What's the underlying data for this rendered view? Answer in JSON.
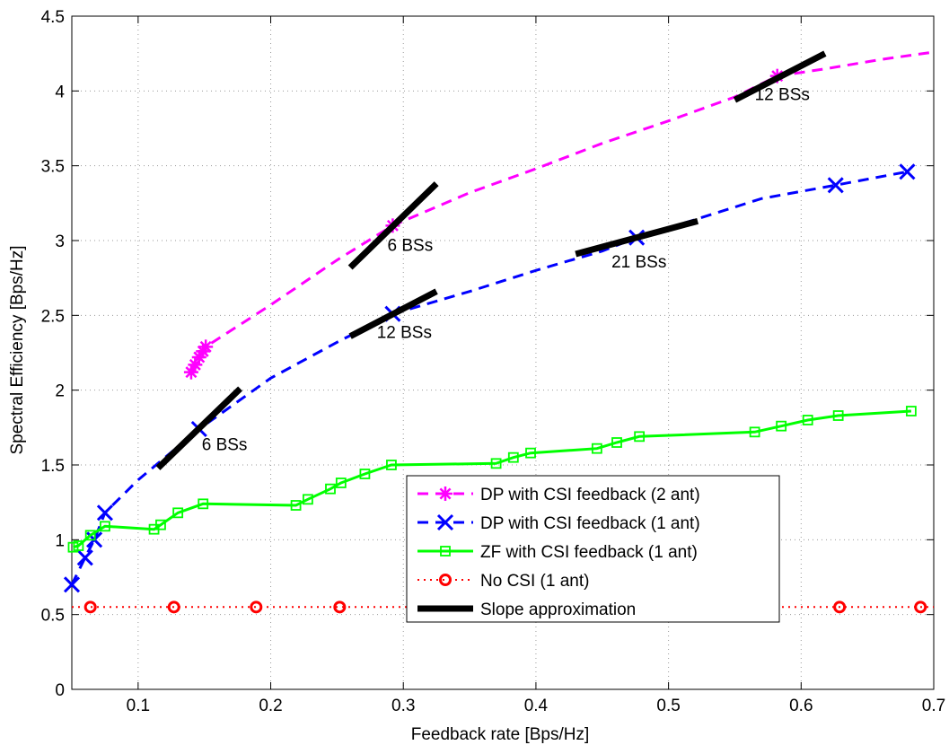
{
  "chart_data": {
    "type": "line",
    "title": "",
    "xlabel": "Feedback rate [Bps/Hz]",
    "ylabel": "Spectral Efficiency [Bps/Hz]",
    "xlim": [
      0.05,
      0.7
    ],
    "ylim": [
      0,
      4.5
    ],
    "x_ticks": [
      0.1,
      0.2,
      0.3,
      0.4,
      0.5,
      0.6,
      0.7
    ],
    "x_tick_labels": [
      "0.1",
      "0.2",
      "0.3",
      "0.4",
      "0.5",
      "0.6",
      "0.7"
    ],
    "y_ticks": [
      0,
      0.5,
      1,
      1.5,
      2,
      2.5,
      3,
      3.5,
      4,
      4.5
    ],
    "y_tick_labels": [
      "0",
      "0.5",
      "1",
      "1.5",
      "2",
      "2.5",
      "3",
      "3.5",
      "4",
      "4.5"
    ],
    "grid": true,
    "legend_position": "lower-right",
    "series": [
      {
        "name": "DP with CSI feedback (2 ant)",
        "color": "#ff00ff",
        "line_style": "dashed",
        "marker": "asterisk",
        "points": [
          [
            0.14,
            2.12
          ],
          [
            0.143,
            2.17
          ],
          [
            0.146,
            2.22
          ],
          [
            0.149,
            2.26
          ],
          [
            0.151,
            2.29
          ],
          [
            0.2,
            2.57
          ],
          [
            0.25,
            2.87
          ],
          [
            0.292,
            3.1
          ],
          [
            0.35,
            3.32
          ],
          [
            0.4,
            3.48
          ],
          [
            0.45,
            3.65
          ],
          [
            0.5,
            3.8
          ],
          [
            0.55,
            3.96
          ],
          [
            0.582,
            4.1
          ],
          [
            0.62,
            4.15
          ],
          [
            0.66,
            4.21
          ],
          [
            0.7,
            4.26
          ]
        ],
        "marker_points": [
          [
            0.14,
            2.12
          ],
          [
            0.143,
            2.17
          ],
          [
            0.146,
            2.22
          ],
          [
            0.149,
            2.26
          ],
          [
            0.151,
            2.29
          ],
          [
            0.292,
            3.1
          ],
          [
            0.582,
            4.1
          ]
        ]
      },
      {
        "name": "DP with CSI feedback (1 ant)",
        "color": "#0000ff",
        "line_style": "dashed",
        "marker": "x",
        "points": [
          [
            0.05,
            0.7
          ],
          [
            0.06,
            0.88
          ],
          [
            0.067,
            1.0
          ],
          [
            0.075,
            1.18
          ],
          [
            0.1,
            1.4
          ],
          [
            0.146,
            1.74
          ],
          [
            0.2,
            2.08
          ],
          [
            0.25,
            2.32
          ],
          [
            0.292,
            2.51
          ],
          [
            0.35,
            2.66
          ],
          [
            0.4,
            2.8
          ],
          [
            0.45,
            2.93
          ],
          [
            0.476,
            3.02
          ],
          [
            0.52,
            3.14
          ],
          [
            0.57,
            3.28
          ],
          [
            0.626,
            3.37
          ],
          [
            0.68,
            3.46
          ]
        ],
        "marker_points": [
          [
            0.05,
            0.7
          ],
          [
            0.06,
            0.88
          ],
          [
            0.067,
            1.0
          ],
          [
            0.075,
            1.18
          ],
          [
            0.146,
            1.74
          ],
          [
            0.292,
            2.51
          ],
          [
            0.476,
            3.02
          ],
          [
            0.626,
            3.37
          ],
          [
            0.68,
            3.46
          ]
        ]
      },
      {
        "name": "ZF with CSI feedback (1 ant)",
        "color": "#00ff00",
        "line_style": "solid",
        "marker": "square",
        "points": [
          [
            0.051,
            0.95
          ],
          [
            0.055,
            0.96
          ],
          [
            0.064,
            1.03
          ],
          [
            0.075,
            1.09
          ],
          [
            0.112,
            1.07
          ],
          [
            0.117,
            1.1
          ],
          [
            0.13,
            1.18
          ],
          [
            0.149,
            1.24
          ],
          [
            0.219,
            1.23
          ],
          [
            0.228,
            1.27
          ],
          [
            0.245,
            1.34
          ],
          [
            0.253,
            1.38
          ],
          [
            0.271,
            1.44
          ],
          [
            0.291,
            1.5
          ],
          [
            0.37,
            1.51
          ],
          [
            0.383,
            1.55
          ],
          [
            0.396,
            1.58
          ],
          [
            0.446,
            1.61
          ],
          [
            0.461,
            1.65
          ],
          [
            0.478,
            1.69
          ],
          [
            0.565,
            1.72
          ],
          [
            0.585,
            1.76
          ],
          [
            0.605,
            1.8
          ],
          [
            0.628,
            1.83
          ],
          [
            0.683,
            1.86
          ]
        ]
      },
      {
        "name": "No CSI (1 ant)",
        "color": "#ff0000",
        "line_style": "dotted",
        "marker": "circle",
        "points": [
          [
            0.05,
            0.55
          ],
          [
            0.064,
            0.55
          ],
          [
            0.127,
            0.55
          ],
          [
            0.189,
            0.55
          ],
          [
            0.252,
            0.55
          ],
          [
            0.629,
            0.55
          ],
          [
            0.69,
            0.55
          ],
          [
            0.7,
            0.55
          ]
        ],
        "marker_points": [
          [
            0.064,
            0.55
          ],
          [
            0.127,
            0.55
          ],
          [
            0.189,
            0.55
          ],
          [
            0.252,
            0.55
          ],
          [
            0.629,
            0.55
          ],
          [
            0.69,
            0.55
          ]
        ]
      }
    ],
    "slope_approximation": {
      "name": "Slope approximation",
      "color": "#000000",
      "segments": [
        [
          [
            0.115,
            1.48
          ],
          [
            0.177,
            2.01
          ]
        ],
        [
          [
            0.26,
            2.82
          ],
          [
            0.325,
            3.38
          ]
        ],
        [
          [
            0.26,
            2.36
          ],
          [
            0.325,
            2.66
          ]
        ],
        [
          [
            0.43,
            2.91
          ],
          [
            0.522,
            3.13
          ]
        ],
        [
          [
            0.55,
            3.94
          ],
          [
            0.618,
            4.25
          ]
        ]
      ]
    },
    "annotations": [
      {
        "text": "6 BSs",
        "x": 0.148,
        "y": 1.6
      },
      {
        "text": "6 BSs",
        "x": 0.288,
        "y": 2.93
      },
      {
        "text": "12 BSs",
        "x": 0.28,
        "y": 2.35
      },
      {
        "text": "21 BSs",
        "x": 0.457,
        "y": 2.82
      },
      {
        "text": "12 BSs",
        "x": 0.565,
        "y": 3.94
      }
    ]
  }
}
